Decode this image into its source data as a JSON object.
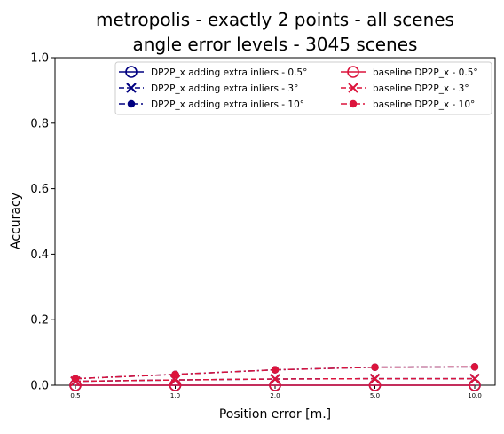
{
  "chart_data": {
    "type": "line",
    "title_line1": "metropolis - exactly 2 points - all scenes",
    "title_line2": "angle error levels - 3045 scenes",
    "xlabel": "Position error [m.]",
    "ylabel": "Accuracy",
    "categories": [
      "0.5",
      "1.0",
      "2.0",
      "5.0",
      "10.0"
    ],
    "ylim": [
      0,
      1.0
    ],
    "yticks": [
      "0.0",
      "0.2",
      "0.4",
      "0.6",
      "0.8",
      "1.0"
    ],
    "grid": false,
    "legend_position": "top-right",
    "series": [
      {
        "name": "DP2P_x adding extra inliers - 0.5°",
        "color": "#000080",
        "marker": "circle-open",
        "linestyle": "solid",
        "values": [
          0.0,
          0.0,
          0.0,
          0.0,
          0.0
        ]
      },
      {
        "name": "DP2P_x adding extra inliers - 3°",
        "color": "#000080",
        "marker": "x",
        "linestyle": "dashed",
        "values": [
          0.012,
          0.016,
          0.019,
          0.02,
          0.02
        ]
      },
      {
        "name": "DP2P_x adding extra inliers - 10°",
        "color": "#000080",
        "marker": "dot",
        "linestyle": "dashdot",
        "values": [
          0.02,
          0.033,
          0.047,
          0.055,
          0.056
        ]
      },
      {
        "name": "baseline DP2P_x - 0.5°",
        "color": "#dc143c",
        "marker": "circle-open",
        "linestyle": "solid",
        "values": [
          0.0,
          0.0,
          0.0,
          0.0,
          0.0
        ]
      },
      {
        "name": "baseline DP2P_x - 3°",
        "color": "#dc143c",
        "marker": "x",
        "linestyle": "dashed",
        "values": [
          0.012,
          0.016,
          0.019,
          0.02,
          0.02
        ]
      },
      {
        "name": "baseline DP2P_x - 10°",
        "color": "#dc143c",
        "marker": "dot",
        "linestyle": "dashdot",
        "values": [
          0.02,
          0.033,
          0.047,
          0.055,
          0.056
        ]
      }
    ]
  }
}
